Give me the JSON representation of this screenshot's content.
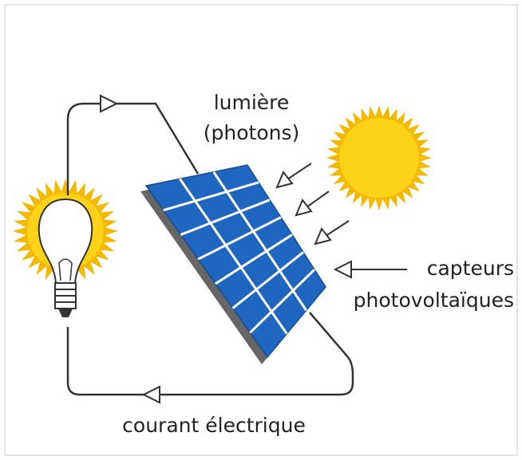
{
  "labels": {
    "light": "lumière",
    "photons": "(photons)",
    "sensors": "capteurs",
    "photovoltaic": "photovoltaïques",
    "current": "courant électrique"
  }
}
